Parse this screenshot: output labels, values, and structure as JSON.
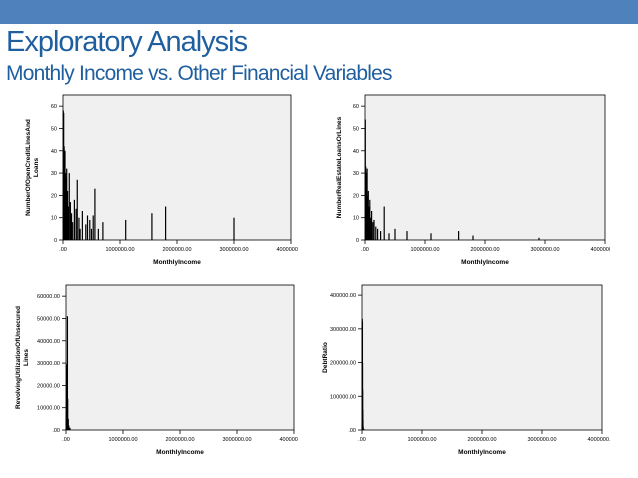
{
  "slide": {
    "title": "Exploratory Analysis",
    "subtitle": "Monthly Income vs. Other Financial Variables"
  },
  "colors": {
    "accent_bar": "#4f81bd",
    "title": "#1f5f9f",
    "plot_bg": "#f0f0f0",
    "mark": "#000000"
  },
  "chart_data": [
    {
      "type": "bar",
      "xlabel": "MonthlyIncome",
      "ylabel": "NumberOfOpenCreditLinesAnd Loans",
      "xlim": [
        0,
        4000000
      ],
      "ylim": [
        0,
        65
      ],
      "xticks": [
        0,
        1000000,
        2000000,
        3000000,
        4000000
      ],
      "xtick_labels": [
        ".00",
        "1000000.00",
        "2000000.00",
        "3000000.00",
        "4000000.00"
      ],
      "yticks": [
        0,
        10,
        20,
        30,
        40,
        50,
        60
      ],
      "ytick_labels": [
        "0",
        "10",
        "20",
        "30",
        "40",
        "50",
        "60"
      ],
      "grid": false,
      "x": [
        5000,
        12000,
        20000,
        28000,
        35000,
        45000,
        55000,
        65000,
        80000,
        95000,
        110000,
        130000,
        150000,
        170000,
        200000,
        230000,
        250000,
        280000,
        300000,
        340000,
        400000,
        430000,
        470000,
        500000,
        530000,
        560000,
        620000,
        700000,
        1100000,
        1560000,
        1800000,
        3000000
      ],
      "values": [
        58,
        57,
        42,
        35,
        40,
        30,
        28,
        32,
        22,
        15,
        30,
        17,
        12,
        8,
        18,
        14,
        27,
        10,
        5,
        13,
        7,
        11,
        9,
        5,
        11,
        23,
        5,
        8,
        9,
        12,
        15,
        10
      ]
    },
    {
      "type": "bar",
      "xlabel": "MonthlyIncome",
      "ylabel": "NumberRealEstateLoansOrLines",
      "xlim": [
        0,
        4000000
      ],
      "ylim": [
        0,
        65
      ],
      "xticks": [
        0,
        1000000,
        2000000,
        3000000,
        4000000
      ],
      "xtick_labels": [
        ".00",
        "1000000.00",
        "2000000.00",
        "3000000.00",
        "4000000.00"
      ],
      "yticks": [
        0,
        10,
        20,
        30,
        40,
        50,
        60
      ],
      "ytick_labels": [
        "0",
        "10",
        "20",
        "30",
        "40",
        "50",
        "60"
      ],
      "grid": false,
      "x": [
        5000,
        12000,
        20000,
        28000,
        35000,
        45000,
        55000,
        65000,
        80000,
        95000,
        110000,
        130000,
        150000,
        180000,
        210000,
        260000,
        320000,
        400000,
        500000,
        700000,
        1100000,
        1560000,
        1800000,
        2900000
      ],
      "values": [
        54,
        33,
        30,
        25,
        32,
        20,
        22,
        15,
        18,
        10,
        13,
        8,
        9,
        6,
        5,
        4,
        15,
        3,
        5,
        4,
        3,
        4,
        2,
        1
      ]
    },
    {
      "type": "bar",
      "xlabel": "MonthlyIncome",
      "ylabel": "RevolvingUtilizationOfUnsecured Lines",
      "xlim": [
        0,
        4000000
      ],
      "ylim": [
        0,
        65000
      ],
      "xticks": [
        0,
        1000000,
        2000000,
        3000000,
        4000000
      ],
      "xtick_labels": [
        ".00",
        "1000000.00",
        "2000000.00",
        "3000000.00",
        "4000000.00"
      ],
      "yticks": [
        0,
        10000,
        20000,
        30000,
        40000,
        50000,
        60000
      ],
      "ytick_labels": [
        ".00",
        "10000.00",
        "20000.00",
        "30000.00",
        "40000.00",
        "50000.00",
        "60000.00"
      ],
      "grid": false,
      "x": [
        2000,
        4000,
        7000,
        9000,
        12000,
        16000,
        20000,
        25000,
        30000,
        40000,
        50000,
        70000
      ],
      "values": [
        5000,
        8000,
        12000,
        20000,
        29000,
        29500,
        22000,
        51000,
        14000,
        5000,
        2000,
        1000
      ]
    },
    {
      "type": "bar",
      "xlabel": "MonthlyIncome",
      "ylabel": "DebtRatio",
      "xlim": [
        0,
        4000000
      ],
      "ylim": [
        0,
        430000
      ],
      "xticks": [
        0,
        1000000,
        2000000,
        3000000,
        4000000
      ],
      "xtick_labels": [
        ".00",
        "1000000.00",
        "2000000.00",
        "3000000.00",
        "4000000.00"
      ],
      "yticks": [
        0,
        100000,
        200000,
        300000,
        400000
      ],
      "ytick_labels": [
        ".00",
        "100000.00",
        "200000.00",
        "300000.00",
        "400000.00"
      ],
      "grid": false,
      "x": [
        1000,
        2500,
        4000,
        5500,
        7000,
        9000,
        11000,
        13000,
        16000,
        20000,
        30000
      ],
      "values": [
        20000,
        110000,
        330000,
        310000,
        322000,
        200000,
        120000,
        60000,
        30000,
        10000,
        3000
      ]
    }
  ]
}
